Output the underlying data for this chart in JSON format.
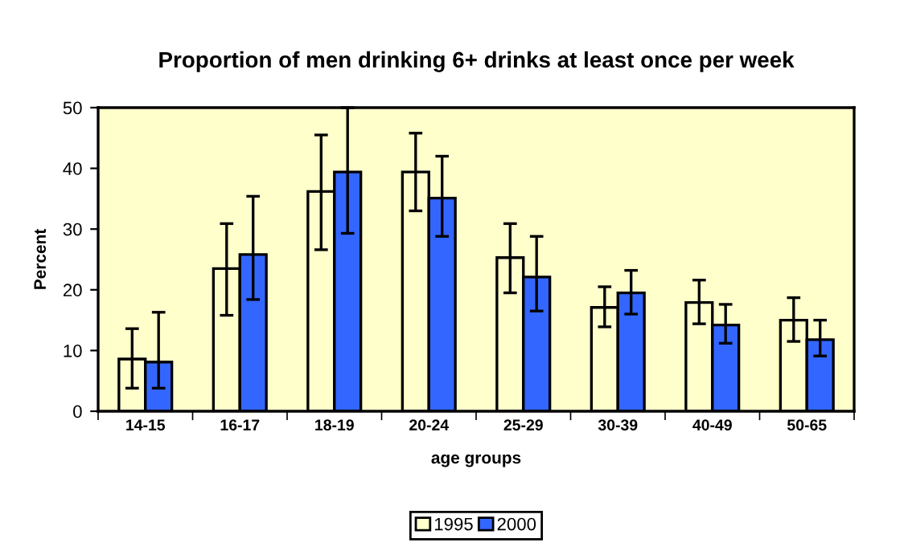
{
  "chart_data": {
    "type": "bar",
    "title": "Proportion of men drinking 6+ drinks at least once per week",
    "xlabel": "age groups",
    "ylabel": "Percent",
    "categories": [
      "14-15",
      "16-17",
      "18-19",
      "20-24",
      "25-29",
      "30-39",
      "40-49",
      "50-65"
    ],
    "series": [
      {
        "name": "1995",
        "color": "#ffffcc",
        "values": [
          8.6,
          23.5,
          36.2,
          39.4,
          25.3,
          17.1,
          17.9,
          15.0
        ],
        "errors": [
          [
            3.8,
            13.6
          ],
          [
            15.8,
            30.9
          ],
          [
            26.6,
            45.5
          ],
          [
            33.0,
            45.8
          ],
          [
            19.5,
            30.9
          ],
          [
            13.9,
            20.5
          ],
          [
            14.4,
            21.6
          ],
          [
            11.5,
            18.7
          ]
        ]
      },
      {
        "name": "2000",
        "color": "#3366ff",
        "values": [
          8.1,
          25.8,
          39.4,
          35.1,
          22.1,
          19.5,
          14.2,
          11.8
        ],
        "errors": [
          [
            3.8,
            16.3
          ],
          [
            18.4,
            35.4
          ],
          [
            29.3,
            50
          ],
          [
            28.8,
            42.0
          ],
          [
            16.5,
            28.8
          ],
          [
            16.0,
            23.2
          ],
          [
            11.2,
            17.6
          ],
          [
            9.1,
            15.0
          ]
        ]
      }
    ],
    "ylim": [
      0,
      50
    ],
    "yticks": [
      0,
      10,
      20,
      30,
      40,
      50
    ],
    "grid": false,
    "legend": "bottom"
  }
}
